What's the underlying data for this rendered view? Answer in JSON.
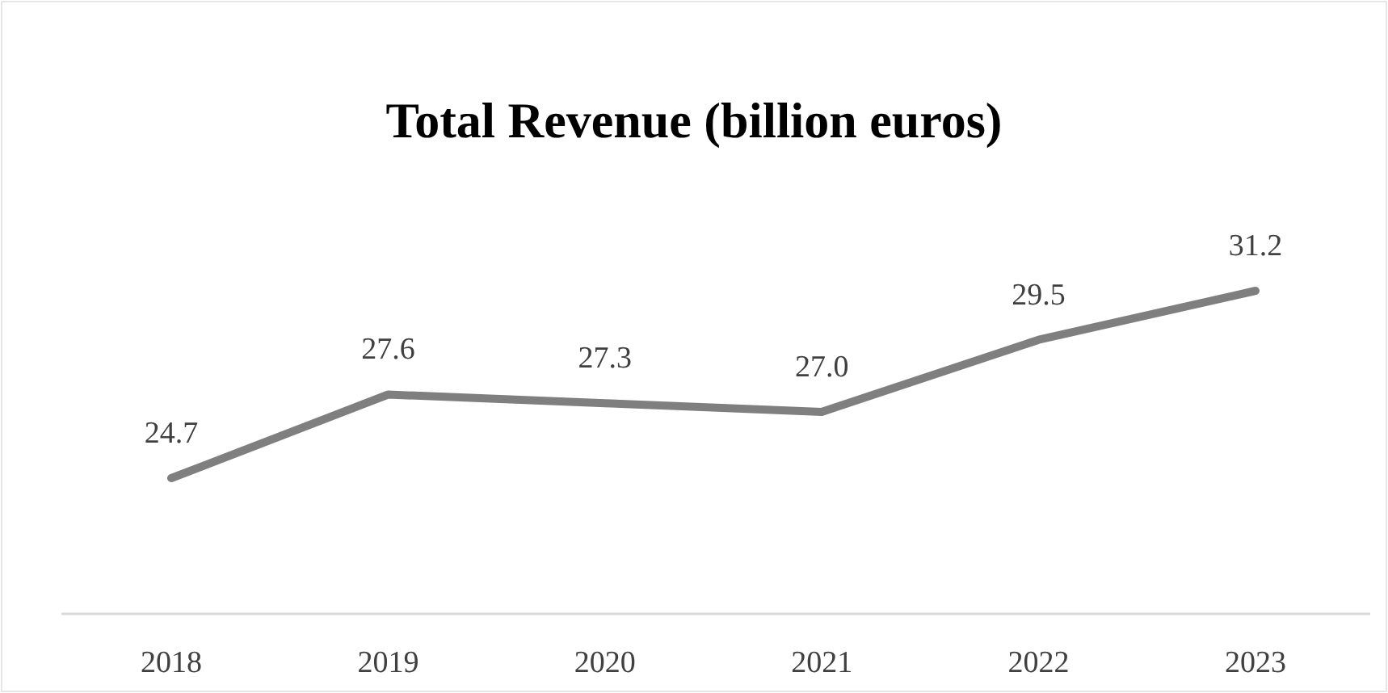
{
  "chart_data": {
    "type": "line",
    "title": "Total Revenue (billion euros)",
    "categories": [
      "2018",
      "2019",
      "2020",
      "2021",
      "2022",
      "2023"
    ],
    "series": [
      {
        "color": "#7f7f7f",
        "values": [
          24.7,
          27.6,
          27.3,
          27.0,
          29.5,
          31.2
        ],
        "value_labels": [
          "24.7",
          "27.6",
          "27.3",
          "27.0",
          "29.5",
          "31.2"
        ]
      }
    ],
    "tick_labels": "x"
  }
}
